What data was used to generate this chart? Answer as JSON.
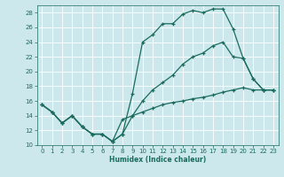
{
  "line1": {
    "x": [
      0,
      1,
      2,
      3,
      4,
      5,
      6,
      7,
      8,
      9,
      10,
      11,
      12,
      13,
      14,
      15,
      16,
      17,
      18,
      19,
      20,
      21,
      22,
      23
    ],
    "y": [
      15.5,
      14.5,
      13.0,
      14.0,
      12.5,
      11.5,
      11.5,
      10.5,
      11.5,
      17.0,
      24.0,
      25.0,
      26.5,
      26.5,
      27.8,
      28.3,
      28.0,
      28.5,
      28.5,
      25.8,
      21.8,
      19.0,
      17.5,
      17.5
    ]
  },
  "line2": {
    "x": [
      0,
      1,
      2,
      3,
      4,
      5,
      6,
      7,
      8,
      9,
      10,
      11,
      12,
      13,
      14,
      15,
      16,
      17,
      18,
      19,
      20,
      21,
      22,
      23
    ],
    "y": [
      15.5,
      14.5,
      13.0,
      14.0,
      12.5,
      11.5,
      11.5,
      10.5,
      11.5,
      14.0,
      16.0,
      17.5,
      18.5,
      19.5,
      21.0,
      22.0,
      22.5,
      23.5,
      24.0,
      22.0,
      21.8,
      19.0,
      17.5,
      17.5
    ]
  },
  "line3": {
    "x": [
      0,
      1,
      2,
      3,
      4,
      5,
      6,
      7,
      8,
      9,
      10,
      11,
      12,
      13,
      14,
      15,
      16,
      17,
      18,
      19,
      20,
      21,
      22,
      23
    ],
    "y": [
      15.5,
      14.5,
      13.0,
      14.0,
      12.5,
      11.5,
      11.5,
      10.5,
      13.5,
      14.0,
      14.5,
      15.0,
      15.5,
      15.8,
      16.0,
      16.3,
      16.5,
      16.8,
      17.2,
      17.5,
      17.8,
      17.5,
      17.5,
      17.5
    ]
  },
  "xlabel": "Humidex (Indice chaleur)",
  "xlim": [
    -0.5,
    23.5
  ],
  "ylim": [
    10,
    29
  ],
  "yticks": [
    10,
    12,
    14,
    16,
    18,
    20,
    22,
    24,
    26,
    28
  ],
  "xticks": [
    0,
    1,
    2,
    3,
    4,
    5,
    6,
    7,
    8,
    9,
    10,
    11,
    12,
    13,
    14,
    15,
    16,
    17,
    18,
    19,
    20,
    21,
    22,
    23
  ],
  "bg_color": "#cce8ec",
  "grid_color": "#ffffff",
  "line_color": "#1a6b5e"
}
